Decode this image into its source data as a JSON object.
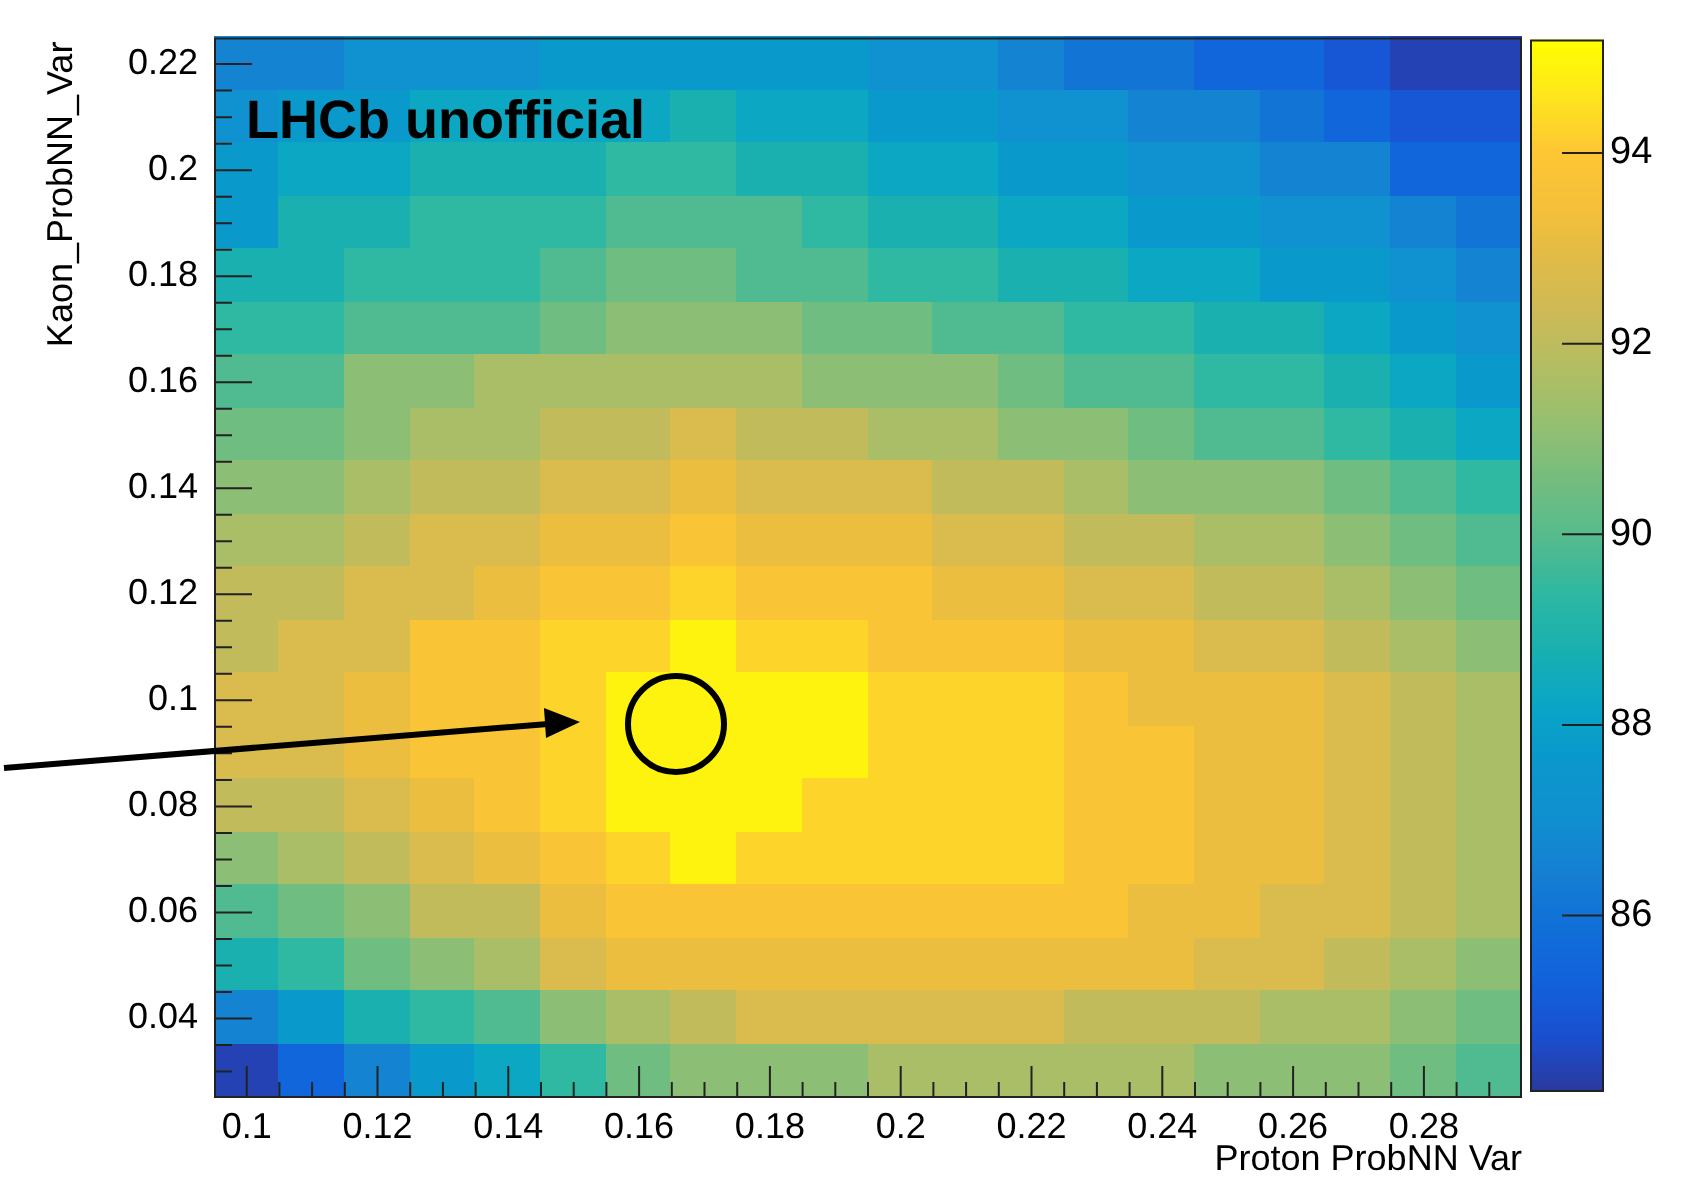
{
  "chart_data": {
    "type": "heatmap",
    "xlabel": "Proton ProbNN Var",
    "ylabel": "Kaon_ProbNN_Var",
    "annotations": [
      "LHCb unofficial"
    ],
    "categories": [
      "0.1",
      null,
      "0.12",
      null,
      "0.14",
      null,
      "0.16",
      null,
      "0.18",
      null,
      "0.2",
      null,
      "0.22",
      null,
      "0.24",
      null,
      "0.26",
      null,
      "0.28",
      null
    ],
    "y_categories": [
      "0.22",
      null,
      "0.2",
      null,
      "0.18",
      null,
      "0.16",
      null,
      "0.14",
      null,
      "0.12",
      null,
      "0.1",
      null,
      "0.08",
      null,
      "0.06",
      null,
      "0.04",
      null
    ],
    "clim": [
      84.17,
      95.19
    ],
    "cticks": [
      86,
      88,
      90,
      92,
      94
    ],
    "cells": [
      [
        86.6,
        86.6,
        87.2,
        87.2,
        87.2,
        87.7,
        87.7,
        87.7,
        87.7,
        87.7,
        87.2,
        87.2,
        86.6,
        86.1,
        86.1,
        85.5,
        85.5,
        85.0,
        84.4,
        84.4
      ],
      [
        87.2,
        87.7,
        87.7,
        88.3,
        88.3,
        88.3,
        88.3,
        88.8,
        88.3,
        88.3,
        87.7,
        87.7,
        87.2,
        87.2,
        86.6,
        86.6,
        86.1,
        85.5,
        85.0,
        85.0
      ],
      [
        87.7,
        88.3,
        88.3,
        88.8,
        88.8,
        88.8,
        89.4,
        89.4,
        88.8,
        88.8,
        88.3,
        88.3,
        87.7,
        87.7,
        87.2,
        87.2,
        86.6,
        86.6,
        85.5,
        85.5
      ],
      [
        87.7,
        88.8,
        88.8,
        89.4,
        89.4,
        89.4,
        89.9,
        89.9,
        89.9,
        89.4,
        88.8,
        88.8,
        88.3,
        88.3,
        87.7,
        87.7,
        87.2,
        87.2,
        86.6,
        86.1
      ],
      [
        88.8,
        88.8,
        89.4,
        89.4,
        89.4,
        89.9,
        90.5,
        90.5,
        89.9,
        89.9,
        89.4,
        89.4,
        88.8,
        88.8,
        88.3,
        88.3,
        87.7,
        87.7,
        87.2,
        86.6
      ],
      [
        89.4,
        89.4,
        89.9,
        89.9,
        89.9,
        90.5,
        91.0,
        91.0,
        91.0,
        90.5,
        90.5,
        89.9,
        89.9,
        89.4,
        89.4,
        88.8,
        88.8,
        88.3,
        87.7,
        87.2
      ],
      [
        89.9,
        89.9,
        91.0,
        91.0,
        91.6,
        91.6,
        91.6,
        91.6,
        91.6,
        91.0,
        91.0,
        91.0,
        90.5,
        89.9,
        89.9,
        89.4,
        89.4,
        88.8,
        88.3,
        87.7
      ],
      [
        90.5,
        90.5,
        91.0,
        91.6,
        91.6,
        92.1,
        92.1,
        92.7,
        92.1,
        92.1,
        91.6,
        91.6,
        91.0,
        91.0,
        90.5,
        89.9,
        89.9,
        89.4,
        88.8,
        88.3
      ],
      [
        91.0,
        91.0,
        91.6,
        92.1,
        92.1,
        92.7,
        92.7,
        93.2,
        92.7,
        92.7,
        92.7,
        92.1,
        92.1,
        91.6,
        91.0,
        91.0,
        91.0,
        90.5,
        89.9,
        89.4
      ],
      [
        91.6,
        91.6,
        92.1,
        92.7,
        92.7,
        93.2,
        93.2,
        93.8,
        93.2,
        93.2,
        93.2,
        92.7,
        92.7,
        92.1,
        92.1,
        91.6,
        91.6,
        91.0,
        90.5,
        89.9
      ],
      [
        92.1,
        92.1,
        92.7,
        92.7,
        93.2,
        93.8,
        93.8,
        94.3,
        93.8,
        93.8,
        93.8,
        93.2,
        93.2,
        92.7,
        92.7,
        92.1,
        92.1,
        91.6,
        91.0,
        90.5
      ],
      [
        92.1,
        92.7,
        92.7,
        93.8,
        93.8,
        94.3,
        94.3,
        94.9,
        94.3,
        94.3,
        93.8,
        93.8,
        93.8,
        93.2,
        93.2,
        92.7,
        92.7,
        92.1,
        91.6,
        91.0
      ],
      [
        92.7,
        92.7,
        93.2,
        93.8,
        93.8,
        94.3,
        94.9,
        94.9,
        94.9,
        94.9,
        94.3,
        94.3,
        94.3,
        93.8,
        93.2,
        93.2,
        93.2,
        92.7,
        92.1,
        91.6
      ],
      [
        92.7,
        92.7,
        93.2,
        93.8,
        93.8,
        94.3,
        94.9,
        94.9,
        94.9,
        94.9,
        94.3,
        94.3,
        94.3,
        93.8,
        93.8,
        93.2,
        93.2,
        92.7,
        92.1,
        91.6
      ],
      [
        92.1,
        92.1,
        92.7,
        93.2,
        93.8,
        94.3,
        94.9,
        94.9,
        94.9,
        94.3,
        94.3,
        94.3,
        94.3,
        93.8,
        93.8,
        93.2,
        93.2,
        92.7,
        92.1,
        91.6
      ],
      [
        91.0,
        91.6,
        92.1,
        92.7,
        93.2,
        93.8,
        94.3,
        94.9,
        94.3,
        94.3,
        94.3,
        94.3,
        94.3,
        93.8,
        93.8,
        93.2,
        93.2,
        92.7,
        92.1,
        91.6
      ],
      [
        89.9,
        90.5,
        91.0,
        92.1,
        92.1,
        93.2,
        93.8,
        93.8,
        93.8,
        93.8,
        93.8,
        93.8,
        93.8,
        93.8,
        93.2,
        93.2,
        92.7,
        92.7,
        92.1,
        91.6
      ],
      [
        88.8,
        89.4,
        90.5,
        91.0,
        91.6,
        92.7,
        93.2,
        93.2,
        93.2,
        93.2,
        93.2,
        93.2,
        93.2,
        93.2,
        93.2,
        92.7,
        92.7,
        92.1,
        91.6,
        91.0
      ],
      [
        86.6,
        87.7,
        88.8,
        89.4,
        89.9,
        91.0,
        91.6,
        92.1,
        92.7,
        92.7,
        92.7,
        92.7,
        92.7,
        92.1,
        92.1,
        92.1,
        91.6,
        91.6,
        91.0,
        90.5
      ],
      [
        84.4,
        85.5,
        86.6,
        87.7,
        88.3,
        89.4,
        90.5,
        91.0,
        91.0,
        91.0,
        91.6,
        91.6,
        91.6,
        91.6,
        91.6,
        91.0,
        91.0,
        91.0,
        90.5,
        89.9
      ]
    ]
  }
}
